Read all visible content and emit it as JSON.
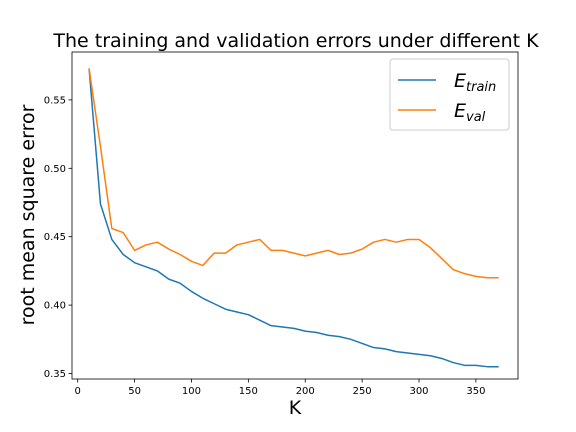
{
  "chart_data": {
    "type": "line",
    "title": "The training and validation errors under different K",
    "xlabel": "K",
    "ylabel": "root mean square error",
    "xlim": [
      -5,
      387
    ],
    "ylim": [
      0.346,
      0.585
    ],
    "xticks": [
      0,
      50,
      100,
      150,
      200,
      250,
      300,
      350
    ],
    "yticks": [
      0.35,
      0.4,
      0.45,
      0.5,
      0.55
    ],
    "ytick_labels": [
      "0.35",
      "0.40",
      "0.45",
      "0.50",
      "0.55"
    ],
    "legend_position": "upper-right",
    "grid": false,
    "x": [
      10,
      20,
      30,
      40,
      50,
      60,
      70,
      80,
      90,
      100,
      110,
      120,
      130,
      140,
      150,
      160,
      170,
      180,
      190,
      200,
      210,
      220,
      230,
      240,
      250,
      260,
      270,
      280,
      290,
      300,
      310,
      320,
      330,
      340,
      350,
      360,
      370
    ],
    "series": [
      {
        "name": "E",
        "name_subscript": "train",
        "color": "#1f77b4",
        "values": [
          0.573,
          0.474,
          0.448,
          0.437,
          0.431,
          0.428,
          0.425,
          0.419,
          0.416,
          0.41,
          0.405,
          0.401,
          0.397,
          0.395,
          0.393,
          0.389,
          0.385,
          0.384,
          0.383,
          0.381,
          0.38,
          0.378,
          0.377,
          0.375,
          0.372,
          0.369,
          0.368,
          0.366,
          0.365,
          0.364,
          0.363,
          0.361,
          0.358,
          0.356,
          0.356,
          0.355,
          0.355
        ]
      },
      {
        "name": "E",
        "name_subscript": "val",
        "color": "#ff7f0e",
        "values": [
          0.573,
          0.516,
          0.456,
          0.453,
          0.44,
          0.444,
          0.446,
          0.441,
          0.437,
          0.432,
          0.429,
          0.438,
          0.438,
          0.444,
          0.446,
          0.448,
          0.44,
          0.44,
          0.438,
          0.436,
          0.438,
          0.44,
          0.437,
          0.438,
          0.441,
          0.446,
          0.448,
          0.446,
          0.448,
          0.448,
          0.442,
          0.434,
          0.426,
          0.423,
          0.421,
          0.42,
          0.42
        ]
      }
    ]
  }
}
